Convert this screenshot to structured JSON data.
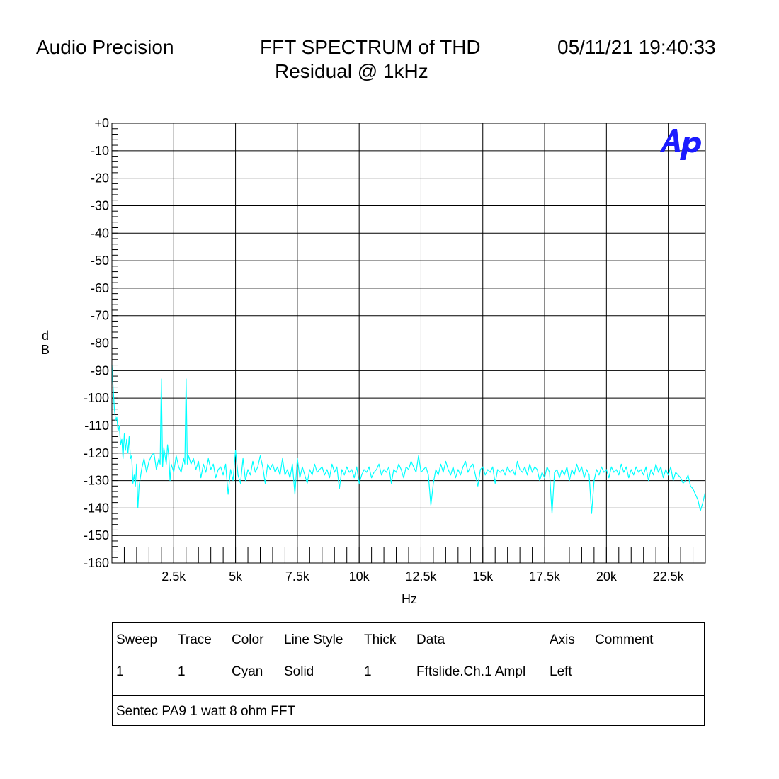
{
  "header": {
    "brand": "Audio Precision",
    "title": "FFT SPECTRUM of THD",
    "subtitle": "Residual @ 1kHz",
    "datetime": "05/11/21 19:40:33"
  },
  "logo": {
    "text": "Ap",
    "color": "#1a1aff"
  },
  "chart_data": {
    "type": "line",
    "ylabel_letters": [
      "d",
      "B"
    ],
    "xlabel": "Hz",
    "xlim": [
      0,
      24000
    ],
    "ylim": [
      -160,
      0
    ],
    "x_ticks": [
      2500,
      5000,
      7500,
      10000,
      12500,
      15000,
      17500,
      20000,
      22500
    ],
    "x_tick_labels": [
      "2.5k",
      "5k",
      "7.5k",
      "10k",
      "12.5k",
      "15k",
      "17.5k",
      "20k",
      "22.5k"
    ],
    "y_ticks": [
      0,
      -10,
      -20,
      -30,
      -40,
      -50,
      -60,
      -70,
      -80,
      -90,
      -100,
      -110,
      -120,
      -130,
      -140,
      -150,
      -160
    ],
    "y_tick_labels": [
      "+0",
      "-10",
      "-20",
      "-30",
      "-40",
      "-50",
      "-60",
      "-70",
      "-80",
      "-90",
      "-100",
      "-110",
      "-120",
      "-130",
      "-140",
      "-150",
      "-160"
    ],
    "grid": true,
    "series": [
      {
        "color": "#00ffff",
        "points": [
          [
            0,
            -88
          ],
          [
            50,
            -96
          ],
          [
            100,
            -104
          ],
          [
            150,
            -108
          ],
          [
            200,
            -107
          ],
          [
            250,
            -112
          ],
          [
            300,
            -110
          ],
          [
            350,
            -117
          ],
          [
            400,
            -115
          ],
          [
            450,
            -122
          ],
          [
            500,
            -113
          ],
          [
            550,
            -119
          ],
          [
            600,
            -115
          ],
          [
            650,
            -120
          ],
          [
            700,
            -114
          ],
          [
            750,
            -122
          ],
          [
            800,
            -121
          ],
          [
            850,
            -131
          ],
          [
            900,
            -128
          ],
          [
            950,
            -132
          ],
          [
            1000,
            -124
          ],
          [
            1050,
            -140
          ],
          [
            1100,
            -132
          ],
          [
            1200,
            -126
          ],
          [
            1300,
            -122
          ],
          [
            1400,
            -127
          ],
          [
            1500,
            -123
          ],
          [
            1600,
            -121
          ],
          [
            1700,
            -120
          ],
          [
            1800,
            -126
          ],
          [
            1900,
            -122
          ],
          [
            1950,
            -124
          ],
          [
            2000,
            -93
          ],
          [
            2050,
            -125
          ],
          [
            2100,
            -118
          ],
          [
            2200,
            -124
          ],
          [
            2250,
            -117
          ],
          [
            2300,
            -121
          ],
          [
            2350,
            -130
          ],
          [
            2400,
            -124
          ],
          [
            2500,
            -127
          ],
          [
            2600,
            -121
          ],
          [
            2700,
            -125
          ],
          [
            2800,
            -127
          ],
          [
            2900,
            -122
          ],
          [
            2950,
            -124
          ],
          [
            3000,
            -93
          ],
          [
            3050,
            -124
          ],
          [
            3100,
            -121
          ],
          [
            3200,
            -124
          ],
          [
            3300,
            -122
          ],
          [
            3400,
            -126
          ],
          [
            3500,
            -123
          ],
          [
            3600,
            -129
          ],
          [
            3700,
            -124
          ],
          [
            3800,
            -127
          ],
          [
            3900,
            -122
          ],
          [
            4000,
            -126
          ],
          [
            4100,
            -124
          ],
          [
            4200,
            -129
          ],
          [
            4300,
            -126
          ],
          [
            4400,
            -125
          ],
          [
            4500,
            -128
          ],
          [
            4600,
            -124
          ],
          [
            4700,
            -135
          ],
          [
            4800,
            -126
          ],
          [
            4900,
            -130
          ],
          [
            5000,
            -119
          ],
          [
            5100,
            -128
          ],
          [
            5200,
            -131
          ],
          [
            5300,
            -122
          ],
          [
            5400,
            -130
          ],
          [
            5500,
            -126
          ],
          [
            5600,
            -128
          ],
          [
            5700,
            -123
          ],
          [
            5800,
            -127
          ],
          [
            5900,
            -125
          ],
          [
            6000,
            -121
          ],
          [
            6100,
            -125
          ],
          [
            6200,
            -131
          ],
          [
            6300,
            -124
          ],
          [
            6400,
            -126
          ],
          [
            6500,
            -124
          ],
          [
            6600,
            -127
          ],
          [
            6700,
            -125
          ],
          [
            6800,
            -128
          ],
          [
            6900,
            -122
          ],
          [
            7000,
            -128
          ],
          [
            7100,
            -126
          ],
          [
            7200,
            -129
          ],
          [
            7300,
            -124
          ],
          [
            7400,
            -135
          ],
          [
            7500,
            -122
          ],
          [
            7600,
            -129
          ],
          [
            7700,
            -125
          ],
          [
            7800,
            -128
          ],
          [
            7900,
            -131
          ],
          [
            8000,
            -126
          ],
          [
            8100,
            -128
          ],
          [
            8200,
            -124
          ],
          [
            8300,
            -127
          ],
          [
            8400,
            -126
          ],
          [
            8500,
            -125
          ],
          [
            8600,
            -128
          ],
          [
            8700,
            -126
          ],
          [
            8800,
            -129
          ],
          [
            8900,
            -124
          ],
          [
            9000,
            -127
          ],
          [
            9100,
            -125
          ],
          [
            9200,
            -133
          ],
          [
            9300,
            -126
          ],
          [
            9400,
            -128
          ],
          [
            9500,
            -125
          ],
          [
            9600,
            -127
          ],
          [
            9700,
            -126
          ],
          [
            9800,
            -129
          ],
          [
            9900,
            -125
          ],
          [
            10000,
            -131
          ],
          [
            10100,
            -128
          ],
          [
            10200,
            -126
          ],
          [
            10300,
            -127
          ],
          [
            10400,
            -125
          ],
          [
            10500,
            -129
          ],
          [
            10600,
            -127
          ],
          [
            10700,
            -126
          ],
          [
            10800,
            -124
          ],
          [
            10900,
            -128
          ],
          [
            11000,
            -126
          ],
          [
            11100,
            -127
          ],
          [
            11200,
            -125
          ],
          [
            11300,
            -131
          ],
          [
            11400,
            -126
          ],
          [
            11500,
            -127
          ],
          [
            11600,
            -124
          ],
          [
            11700,
            -126
          ],
          [
            11800,
            -129
          ],
          [
            11900,
            -125
          ],
          [
            12000,
            -126
          ],
          [
            12100,
            -123
          ],
          [
            12200,
            -125
          ],
          [
            12300,
            -127
          ],
          [
            12400,
            -121
          ],
          [
            12500,
            -127
          ],
          [
            12600,
            -126
          ],
          [
            12700,
            -125
          ],
          [
            12800,
            -128
          ],
          [
            12900,
            -139
          ],
          [
            13000,
            -131
          ],
          [
            13100,
            -126
          ],
          [
            13200,
            -128
          ],
          [
            13300,
            -124
          ],
          [
            13400,
            -127
          ],
          [
            13500,
            -123
          ],
          [
            13600,
            -126
          ],
          [
            13700,
            -128
          ],
          [
            13800,
            -125
          ],
          [
            13900,
            -129
          ],
          [
            14000,
            -126
          ],
          [
            14100,
            -128
          ],
          [
            14200,
            -125
          ],
          [
            14300,
            -123
          ],
          [
            14400,
            -127
          ],
          [
            14500,
            -125
          ],
          [
            14600,
            -124
          ],
          [
            14700,
            -128
          ],
          [
            14800,
            -132
          ],
          [
            14900,
            -126
          ],
          [
            15000,
            -125
          ],
          [
            15100,
            -128
          ],
          [
            15200,
            -126
          ],
          [
            15300,
            -127
          ],
          [
            15400,
            -125
          ],
          [
            15500,
            -131
          ],
          [
            15600,
            -126
          ],
          [
            15700,
            -127
          ],
          [
            15800,
            -126
          ],
          [
            15900,
            -128
          ],
          [
            16000,
            -125
          ],
          [
            16100,
            -127
          ],
          [
            16200,
            -126
          ],
          [
            16300,
            -128
          ],
          [
            16400,
            -123
          ],
          [
            16500,
            -126
          ],
          [
            16600,
            -127
          ],
          [
            16700,
            -125
          ],
          [
            16800,
            -128
          ],
          [
            16900,
            -124
          ],
          [
            17000,
            -127
          ],
          [
            17100,
            -125
          ],
          [
            17200,
            -126
          ],
          [
            17300,
            -130
          ],
          [
            17400,
            -127
          ],
          [
            17500,
            -129
          ],
          [
            17600,
            -125
          ],
          [
            17700,
            -127
          ],
          [
            17800,
            -142
          ],
          [
            17900,
            -127
          ],
          [
            18000,
            -126
          ],
          [
            18100,
            -129
          ],
          [
            18200,
            -126
          ],
          [
            18300,
            -128
          ],
          [
            18400,
            -125
          ],
          [
            18500,
            -130
          ],
          [
            18600,
            -126
          ],
          [
            18700,
            -128
          ],
          [
            18800,
            -124
          ],
          [
            18900,
            -127
          ],
          [
            19000,
            -125
          ],
          [
            19100,
            -129
          ],
          [
            19200,
            -126
          ],
          [
            19300,
            -128
          ],
          [
            19400,
            -142
          ],
          [
            19500,
            -130
          ],
          [
            19600,
            -126
          ],
          [
            19700,
            -128
          ],
          [
            19800,
            -125
          ],
          [
            19900,
            -127
          ],
          [
            20000,
            -126
          ],
          [
            20100,
            -129
          ],
          [
            20200,
            -125
          ],
          [
            20300,
            -127
          ],
          [
            20400,
            -126
          ],
          [
            20500,
            -128
          ],
          [
            20600,
            -124
          ],
          [
            20700,
            -127
          ],
          [
            20800,
            -125
          ],
          [
            20900,
            -129
          ],
          [
            21000,
            -126
          ],
          [
            21100,
            -128
          ],
          [
            21200,
            -125
          ],
          [
            21300,
            -127
          ],
          [
            21400,
            -126
          ],
          [
            21500,
            -128
          ],
          [
            21600,
            -125
          ],
          [
            21700,
            -130
          ],
          [
            21800,
            -126
          ],
          [
            21900,
            -128
          ],
          [
            22000,
            -124
          ],
          [
            22100,
            -127
          ],
          [
            22200,
            -125
          ],
          [
            22300,
            -129
          ],
          [
            22400,
            -126
          ],
          [
            22500,
            -128
          ],
          [
            22600,
            -125
          ],
          [
            22700,
            -130
          ],
          [
            22800,
            -127
          ],
          [
            22900,
            -128
          ],
          [
            23000,
            -129
          ],
          [
            23100,
            -131
          ],
          [
            23200,
            -130
          ],
          [
            23300,
            -128
          ],
          [
            23400,
            -132
          ],
          [
            23500,
            -133
          ],
          [
            23600,
            -135
          ],
          [
            23700,
            -137
          ],
          [
            23800,
            -141
          ],
          [
            23900,
            -138
          ],
          [
            24000,
            -134
          ]
        ]
      }
    ]
  },
  "legend": {
    "headers": [
      "Sweep",
      "Trace",
      "Color",
      "Line Style",
      "Thick",
      "Data",
      "Axis",
      "Comment"
    ],
    "row": [
      "1",
      "1",
      "Cyan",
      "Solid",
      "1",
      "Fftslide.Ch.1 Ampl",
      "Left",
      ""
    ],
    "comment": "Sentec PA9 1 watt 8 ohm FFT"
  }
}
